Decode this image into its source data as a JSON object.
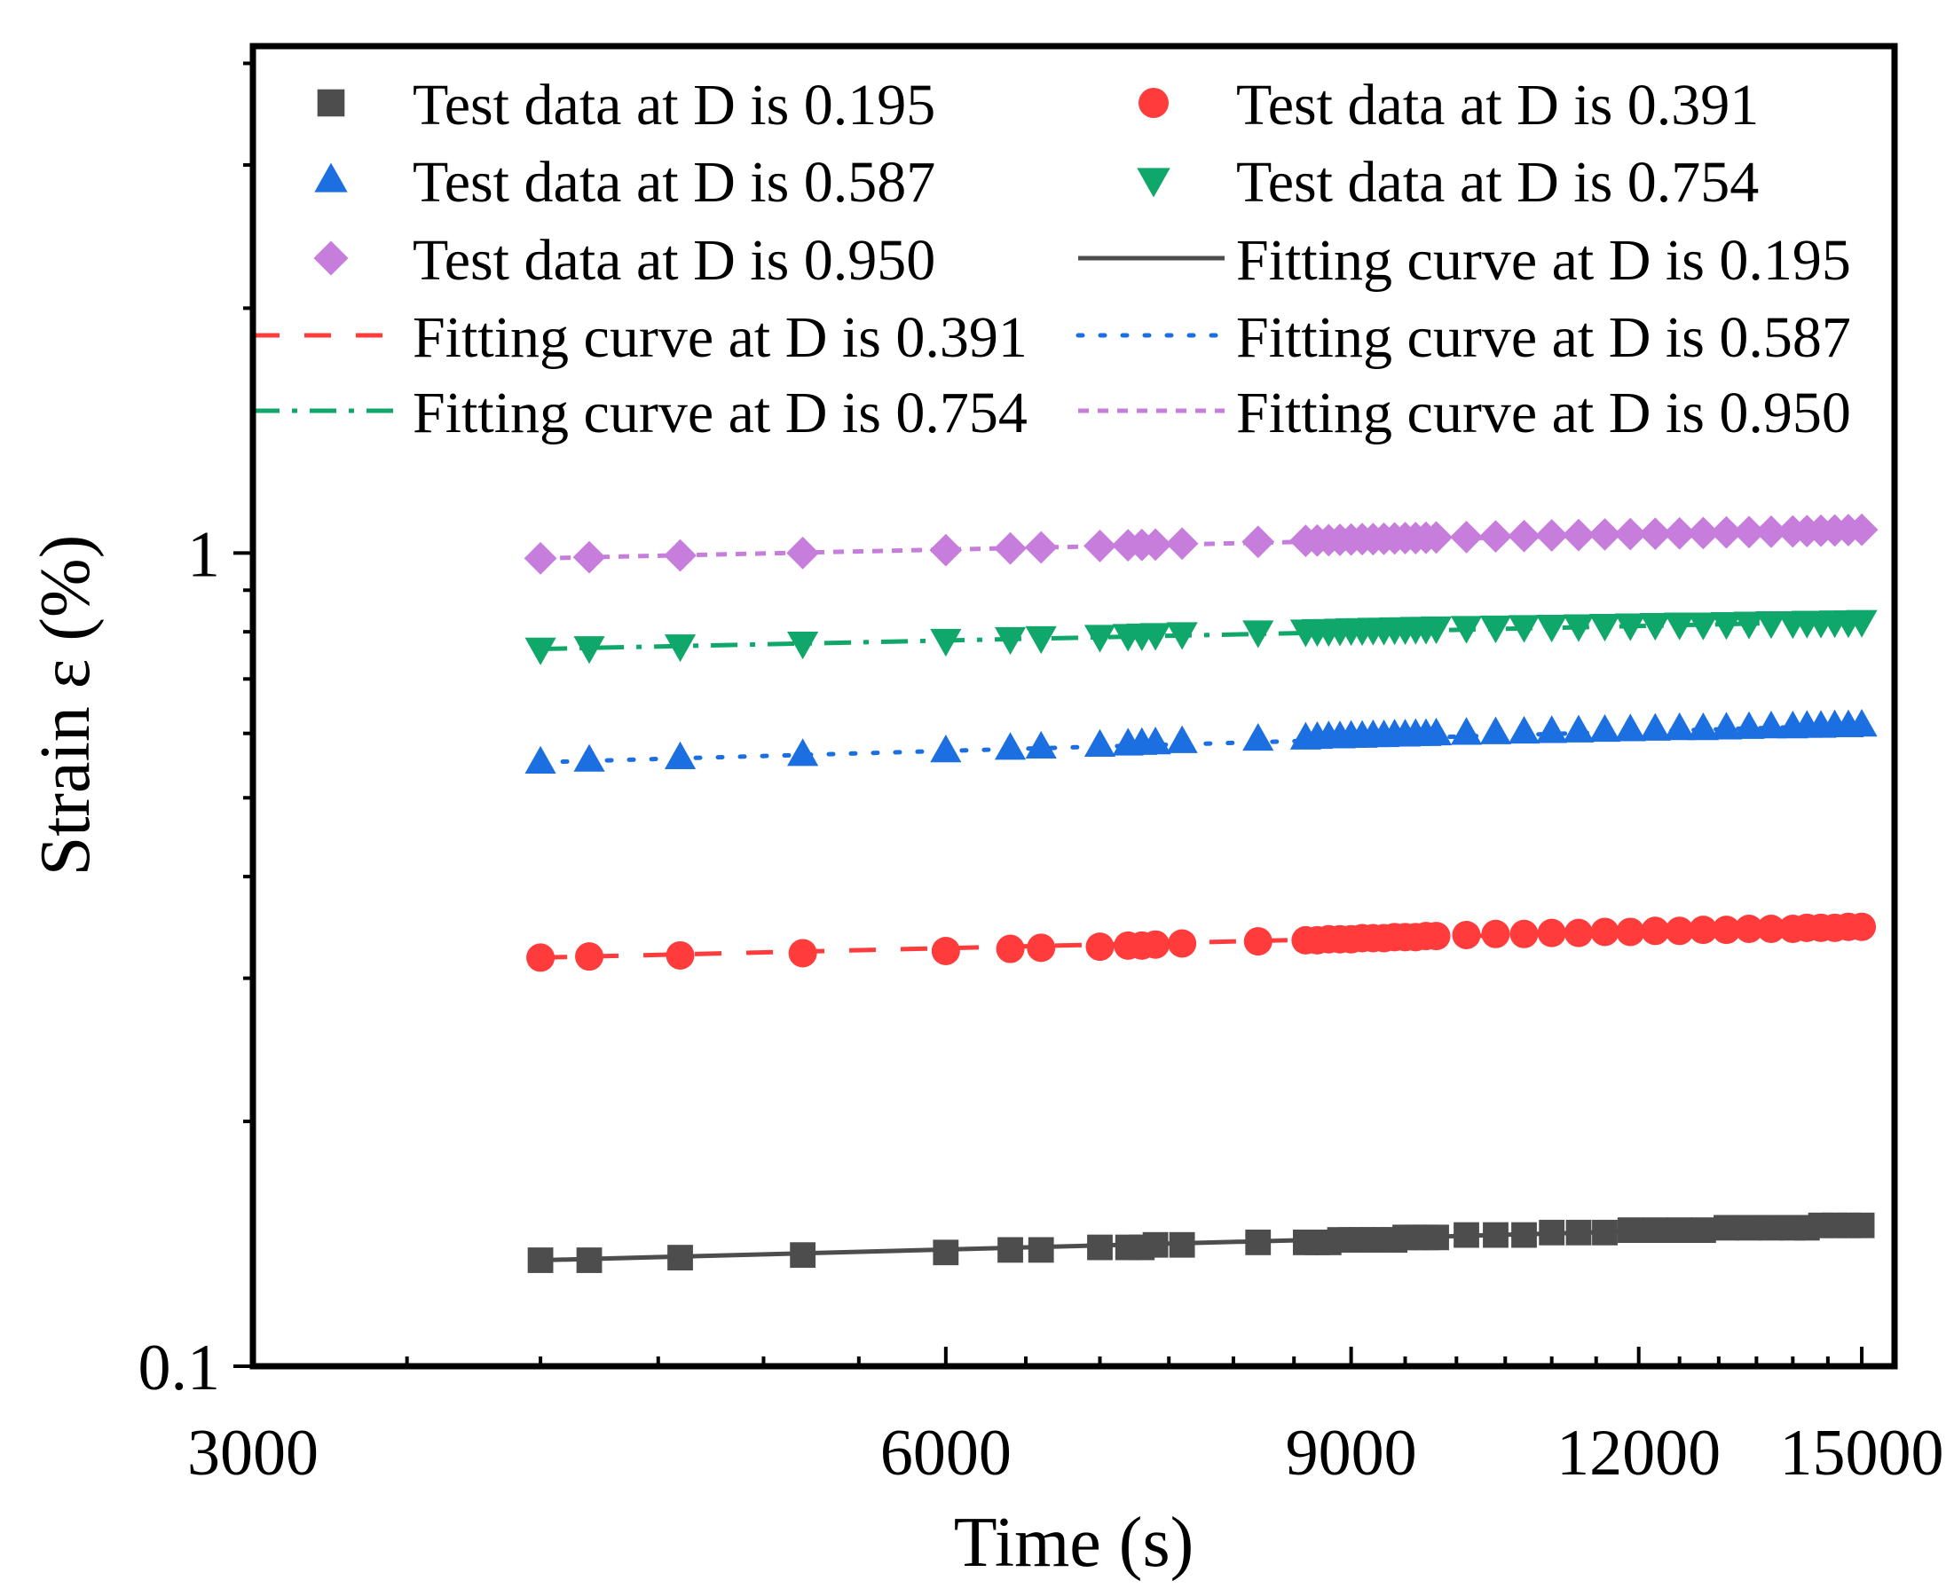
{
  "chart_data": {
    "type": "scatter",
    "title": "",
    "xlabel": "Time (s)",
    "ylabel": "Strain ε (%)",
    "xscale": "log",
    "yscale": "log",
    "xlim": [
      3000,
      15500
    ],
    "ylim": [
      0.1,
      4.2
    ],
    "xticks": [
      {
        "value": 3000,
        "label": "3000"
      },
      {
        "value": 6000,
        "label": "6000"
      },
      {
        "value": 9000,
        "label": "9000"
      },
      {
        "value": 12000,
        "label": "12000"
      },
      {
        "value": 15000,
        "label": "15000"
      }
    ],
    "yticks": [
      {
        "value": 0.1,
        "label": "0.1"
      },
      {
        "value": 1,
        "label": "1"
      }
    ],
    "legend_position": "top",
    "grid": false,
    "series": [
      {
        "name": "Test data at D is 0.195",
        "kind": "markers",
        "marker": "square",
        "color": "#4d4d4d",
        "x": [
          4000,
          4200,
          4600,
          5200,
          6000,
          6400,
          6600,
          7000,
          7200,
          7300,
          7400,
          7600,
          8200,
          8600,
          8700,
          8800,
          8900,
          9000,
          9100,
          9200,
          9300,
          9400,
          9500,
          9600,
          9700,
          9800,
          10100,
          10400,
          10700,
          11000,
          11300,
          11600,
          11900,
          12200,
          12500,
          12800,
          13100,
          13400,
          13700,
          14000,
          14200,
          14400,
          14600,
          14800,
          15000
        ],
        "y": [
          0.135,
          0.135,
          0.136,
          0.137,
          0.138,
          0.139,
          0.139,
          0.14,
          0.14,
          0.14,
          0.141,
          0.141,
          0.142,
          0.142,
          0.142,
          0.142,
          0.143,
          0.143,
          0.143,
          0.143,
          0.143,
          0.143,
          0.144,
          0.144,
          0.144,
          0.144,
          0.145,
          0.145,
          0.145,
          0.146,
          0.146,
          0.146,
          0.147,
          0.147,
          0.147,
          0.147,
          0.148,
          0.148,
          0.148,
          0.148,
          0.148,
          0.149,
          0.149,
          0.149,
          0.149
        ]
      },
      {
        "name": "Test data at D is 0.391",
        "kind": "markers",
        "marker": "circle",
        "color": "#ff3b3b",
        "x": [
          4000,
          4200,
          4600,
          5200,
          6000,
          6400,
          6600,
          7000,
          7200,
          7300,
          7400,
          7600,
          8200,
          8600,
          8700,
          8800,
          8900,
          9000,
          9100,
          9200,
          9300,
          9400,
          9500,
          9600,
          9700,
          9800,
          10100,
          10400,
          10700,
          11000,
          11300,
          11600,
          11900,
          12200,
          12500,
          12800,
          13100,
          13400,
          13700,
          14000,
          14200,
          14400,
          14600,
          14800,
          15000
        ],
        "y": [
          0.318,
          0.319,
          0.32,
          0.322,
          0.324,
          0.326,
          0.327,
          0.328,
          0.329,
          0.329,
          0.33,
          0.331,
          0.333,
          0.334,
          0.334,
          0.335,
          0.335,
          0.335,
          0.336,
          0.336,
          0.336,
          0.337,
          0.337,
          0.337,
          0.338,
          0.338,
          0.339,
          0.34,
          0.34,
          0.341,
          0.341,
          0.342,
          0.342,
          0.343,
          0.343,
          0.344,
          0.344,
          0.345,
          0.345,
          0.345,
          0.346,
          0.346,
          0.346,
          0.347,
          0.347
        ]
      },
      {
        "name": "Test data at D is 0.587",
        "kind": "markers",
        "marker": "triangle-up",
        "color": "#1c6fe0",
        "x": [
          4000,
          4200,
          4600,
          5200,
          6000,
          6400,
          6600,
          7000,
          7200,
          7300,
          7400,
          7600,
          8200,
          8600,
          8700,
          8800,
          8900,
          9000,
          9100,
          9200,
          9300,
          9400,
          9500,
          9600,
          9700,
          9800,
          10100,
          10400,
          10700,
          11000,
          11300,
          11600,
          11900,
          12200,
          12500,
          12800,
          13100,
          13400,
          13700,
          14000,
          14200,
          14400,
          14600,
          14800,
          15000
        ],
        "y": [
          0.553,
          0.556,
          0.56,
          0.565,
          0.571,
          0.575,
          0.577,
          0.58,
          0.582,
          0.583,
          0.584,
          0.586,
          0.59,
          0.592,
          0.593,
          0.594,
          0.594,
          0.595,
          0.595,
          0.596,
          0.596,
          0.597,
          0.597,
          0.598,
          0.598,
          0.599,
          0.6,
          0.601,
          0.602,
          0.603,
          0.604,
          0.605,
          0.606,
          0.607,
          0.608,
          0.608,
          0.609,
          0.61,
          0.611,
          0.611,
          0.612,
          0.612,
          0.613,
          0.613,
          0.614
        ]
      },
      {
        "name": "Test data at D is 0.754",
        "kind": "markers",
        "marker": "triangle-down",
        "color": "#0fa86a",
        "x": [
          4000,
          4200,
          4600,
          5200,
          6000,
          6400,
          6600,
          7000,
          7200,
          7300,
          7400,
          7600,
          8200,
          8600,
          8700,
          8800,
          8900,
          9000,
          9100,
          9200,
          9300,
          9400,
          9500,
          9600,
          9700,
          9800,
          10100,
          10400,
          10700,
          11000,
          11300,
          11600,
          11900,
          12200,
          12500,
          12800,
          13100,
          13400,
          13700,
          14000,
          14200,
          14400,
          14600,
          14800,
          15000
        ],
        "y": [
          0.762,
          0.765,
          0.769,
          0.775,
          0.781,
          0.785,
          0.787,
          0.79,
          0.792,
          0.793,
          0.794,
          0.796,
          0.8,
          0.802,
          0.803,
          0.803,
          0.804,
          0.805,
          0.805,
          0.806,
          0.806,
          0.807,
          0.807,
          0.808,
          0.808,
          0.809,
          0.81,
          0.811,
          0.812,
          0.813,
          0.814,
          0.815,
          0.816,
          0.817,
          0.818,
          0.818,
          0.819,
          0.82,
          0.821,
          0.821,
          0.822,
          0.822,
          0.823,
          0.823,
          0.824
        ]
      },
      {
        "name": "Test data at D is 0.950",
        "kind": "markers",
        "marker": "diamond",
        "color": "#c77ddb",
        "x": [
          4000,
          4200,
          4600,
          5200,
          6000,
          6400,
          6600,
          7000,
          7200,
          7300,
          7400,
          7600,
          8200,
          8600,
          8700,
          8800,
          8900,
          9000,
          9100,
          9200,
          9300,
          9400,
          9500,
          9600,
          9700,
          9800,
          10100,
          10400,
          10700,
          11000,
          11300,
          11600,
          11900,
          12200,
          12500,
          12800,
          13100,
          13400,
          13700,
          14000,
          14200,
          14400,
          14600,
          14800,
          15000
        ],
        "y": [
          0.985,
          0.988,
          0.993,
          1.0,
          1.008,
          1.013,
          1.016,
          1.02,
          1.022,
          1.023,
          1.024,
          1.027,
          1.032,
          1.035,
          1.036,
          1.037,
          1.038,
          1.039,
          1.04,
          1.04,
          1.041,
          1.042,
          1.043,
          1.043,
          1.044,
          1.045,
          1.046,
          1.048,
          1.049,
          1.051,
          1.052,
          1.054,
          1.055,
          1.056,
          1.057,
          1.058,
          1.06,
          1.061,
          1.062,
          1.063,
          1.064,
          1.065,
          1.066,
          1.067,
          1.068
        ]
      },
      {
        "name": "Fitting curve at D is 0.195",
        "kind": "line",
        "dash": "solid",
        "color": "#4d4d4d",
        "x": [
          4000,
          15000
        ],
        "y": [
          0.135,
          0.149
        ]
      },
      {
        "name": "Fitting curve at D is 0.391",
        "kind": "line",
        "dash": "dash",
        "color": "#ff3b3b",
        "x": [
          4000,
          15000
        ],
        "y": [
          0.318,
          0.347
        ]
      },
      {
        "name": "Fitting curve at D is 0.587",
        "kind": "line",
        "dash": "dot",
        "color": "#1c6fe0",
        "x": [
          4000,
          15000
        ],
        "y": [
          0.553,
          0.614
        ]
      },
      {
        "name": "Fitting curve at D is 0.754",
        "kind": "line",
        "dash": "dashdot",
        "color": "#0fa86a",
        "x": [
          4000,
          15000
        ],
        "y": [
          0.762,
          0.824
        ]
      },
      {
        "name": "Fitting curve at D is 0.950",
        "kind": "line",
        "dash": "shortdash",
        "color": "#c77ddb",
        "x": [
          4000,
          15000
        ],
        "y": [
          0.985,
          1.068
        ]
      }
    ]
  }
}
